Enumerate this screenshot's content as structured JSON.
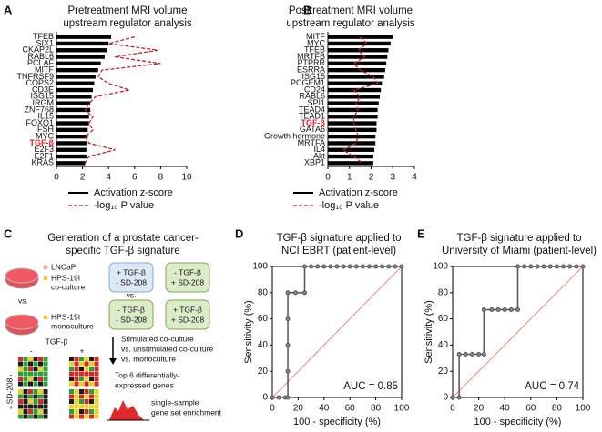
{
  "chart_data": [
    {
      "type": "hbar",
      "panel": "A",
      "title": [
        "Pretreatment MRI volume",
        "upstream regulator analysis"
      ],
      "categories": [
        "TFEB",
        "SIX1",
        "CKAP2L",
        "RABL6",
        "PCLAF",
        "MITF",
        "TNFRSF9",
        "COPS2",
        "CD3E",
        "ISG15",
        "IRGM",
        "ZNF768",
        "IL15",
        "FOXO1",
        "FSH",
        "MYC",
        "TGF-β",
        "E2F3",
        "E2F1",
        "KRAS"
      ],
      "highlight_category": 16,
      "highlight_color": "#e3262b",
      "series": [
        {
          "name": "Activation z-score",
          "color": "#000000",
          "style": "bar",
          "values": [
            4.2,
            4.0,
            3.9,
            3.7,
            3.4,
            3.2,
            3.0,
            2.9,
            2.8,
            2.7,
            2.6,
            2.6,
            2.5,
            2.5,
            2.4,
            2.4,
            2.3,
            2.3,
            2.3,
            2.2
          ]
        },
        {
          "name": "-log₁₀ P value",
          "color": "#b8262c",
          "style": "dashed",
          "values": [
            6.0,
            4.0,
            7.8,
            4.5,
            8.0,
            3.5,
            3.2,
            4.0,
            5.6,
            3.0,
            2.5,
            2.2,
            2.8,
            2.5,
            2.8,
            2.2,
            2.5,
            4.5,
            2.5,
            2.2
          ]
        }
      ],
      "xlim": [
        0,
        10
      ],
      "xticks": [
        0,
        2,
        4,
        6,
        8,
        10
      ]
    },
    {
      "type": "hbar",
      "panel": "B",
      "title": [
        "Posttreatment MRI volume",
        "upstream regulator analysis"
      ],
      "categories": [
        "MITF",
        "MYC",
        "TFEB",
        "MRTFB",
        "PTPRR",
        "ESRRA",
        "ISG15",
        "PCGEM1",
        "CD24",
        "RABL6",
        "SPI1",
        "TEAD4",
        "TEAD1",
        "TGF-β",
        "GATA6",
        "Growth hormone",
        "MRTFA",
        "IL4",
        "Akt",
        "XBP1"
      ],
      "highlight_category": 13,
      "highlight_color": "#e3262b",
      "series": [
        {
          "name": "Activation z-score",
          "color": "#000000",
          "style": "bar",
          "values": [
            3.0,
            2.9,
            2.8,
            2.75,
            2.7,
            2.65,
            2.6,
            2.5,
            2.45,
            2.4,
            2.35,
            2.3,
            2.3,
            2.25,
            2.25,
            2.2,
            2.2,
            2.15,
            2.1,
            2.1
          ]
        },
        {
          "name": "-log₁₀ P value",
          "color": "#b8262c",
          "style": "dashed",
          "values": [
            1.5,
            1.8,
            1.4,
            1.7,
            1.2,
            1.5,
            2.1,
            2.3,
            1.2,
            1.5,
            1.3,
            1.4,
            1.2,
            1.2,
            1.3,
            1.4,
            1.3,
            0.7,
            1.2,
            1.6
          ]
        }
      ],
      "xlim": [
        0,
        4
      ],
      "xticks": [
        0,
        1,
        2,
        3,
        4
      ]
    },
    {
      "type": "line",
      "panel": "D",
      "title": [
        "TGF-β signature applied to",
        "NCI EBRT (patient-level)"
      ],
      "x": [
        0,
        5,
        10,
        12,
        12,
        12,
        12,
        12,
        18,
        25,
        25,
        30,
        35,
        40,
        45,
        50,
        55,
        60,
        65,
        70,
        75,
        80,
        85,
        90,
        95,
        100
      ],
      "series": [
        {
          "color": "#555555",
          "values": [
            0,
            0,
            0,
            0,
            20,
            40,
            60,
            80,
            80,
            80,
            100,
            100,
            100,
            100,
            100,
            100,
            100,
            100,
            100,
            100,
            100,
            100,
            100,
            100,
            100,
            100
          ]
        }
      ],
      "diagonal_color": "#f08a8a",
      "annotation": "AUC = 0.85",
      "xlabel": "100 - specificity (%)",
      "ylabel": "Sensitivity (%)",
      "xlim": [
        0,
        100
      ],
      "ylim": [
        0,
        100
      ],
      "xticks": [
        0,
        20,
        40,
        60,
        80,
        100
      ],
      "yticks": [
        0,
        20,
        40,
        60,
        80,
        100
      ]
    },
    {
      "type": "line",
      "panel": "E",
      "title": [
        "TGF-β signature applied to",
        "University of Miami (patient-level)"
      ],
      "x": [
        0,
        5,
        5,
        10,
        15,
        20,
        24,
        24,
        30,
        35,
        40,
        45,
        50,
        50,
        55,
        60,
        65,
        70,
        75,
        80,
        85,
        90,
        95,
        100
      ],
      "series": [
        {
          "color": "#555555",
          "values": [
            0,
            0,
            33,
            33,
            33,
            33,
            33,
            67,
            67,
            67,
            67,
            67,
            67,
            100,
            100,
            100,
            100,
            100,
            100,
            100,
            100,
            100,
            100,
            100
          ]
        }
      ],
      "diagonal_color": "#f08a8a",
      "annotation": "AUC = 0.74",
      "xlabel": "100 - specificity (%)",
      "ylabel": "Sensitivity (%)",
      "xlim": [
        0,
        100
      ],
      "ylim": [
        0,
        100
      ],
      "xticks": [
        0,
        20,
        40,
        60,
        80,
        100
      ],
      "yticks": [
        0,
        20,
        40,
        60,
        80,
        100
      ]
    }
  ],
  "diagram": {
    "panel": "C",
    "title": [
      "Generation of a prostate cancer-",
      "specific TGF-β signature"
    ],
    "lncap": "LNCaP",
    "coculture": [
      "HPS-19I",
      "co-culture"
    ],
    "vs": "vs.",
    "monoculture": [
      "HPS-19I",
      "monoculture"
    ],
    "boxes": [
      [
        "+ TGF-β",
        "- SD-208"
      ],
      [
        "- TGF-β",
        "+ SD-208"
      ],
      [
        "- TGF-β",
        "- SD-208"
      ],
      [
        "+ TGF-β",
        "+ SD-208"
      ]
    ],
    "box_vs": "vs.",
    "heat_top": "TGF-β",
    "heat_side": "SD-208",
    "minus": "-",
    "plus": "+",
    "steps": [
      "Stimulated co-culture",
      "vs. unstimulated co-culture",
      "vs. monoculture"
    ],
    "genes": [
      "Top 6 differentially-",
      "expressed genes"
    ],
    "ssgsea": [
      "single-sample",
      "gene set enrichment"
    ]
  }
}
